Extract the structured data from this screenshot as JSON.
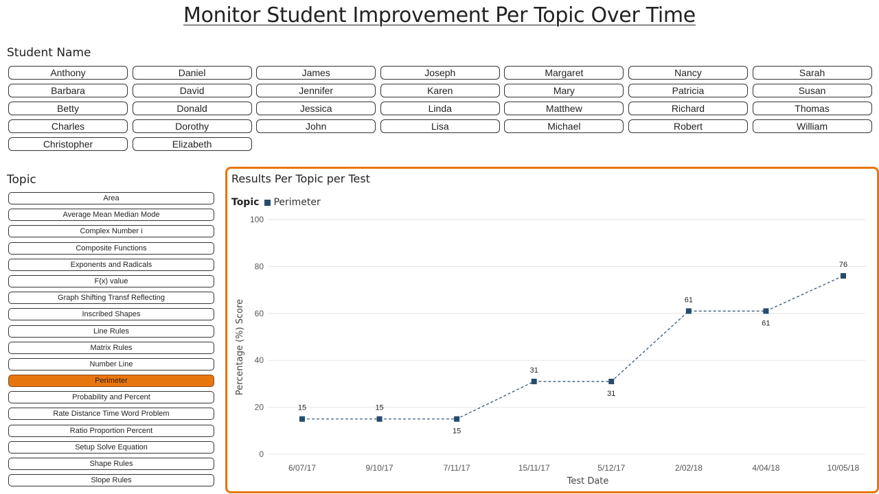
{
  "page": {
    "title": "Monitor Student Improvement Per Topic Over Time"
  },
  "students": {
    "label": "Student Name",
    "names": [
      "Anthony",
      "Daniel",
      "James",
      "Joseph",
      "Margaret",
      "Nancy",
      "Sarah",
      "Barbara",
      "David",
      "Jennifer",
      "Karen",
      "Mary",
      "Patricia",
      "Susan",
      "Betty",
      "Donald",
      "Jessica",
      "Linda",
      "Matthew",
      "Richard",
      "Thomas",
      "Charles",
      "Dorothy",
      "John",
      "Lisa",
      "Michael",
      "Robert",
      "William",
      "Christopher",
      "Elizabeth"
    ]
  },
  "topics": {
    "label": "Topic",
    "selected": "Perimeter",
    "items": [
      "Area",
      "Average Mean Median Mode",
      "Complex Number i",
      "Composite Functions",
      "Exponents and Radicals",
      "F(x) value",
      "Graph Shifting Transf Reflecting",
      "Inscribed Shapes",
      "Line Rules",
      "Matrix Rules",
      "Number Line",
      "Perimeter",
      "Probability and Percent",
      "Rate Distance Time Word Problem",
      "Ratio Proportion Percent",
      "Setup Solve Equation",
      "Shape Rules",
      "Slope Rules"
    ]
  },
  "colors": {
    "accent": "#e8760f",
    "series": "#254b6e",
    "grid": "#e6e6e6"
  },
  "chart_data": {
    "type": "line",
    "title": "Results Per Topic per Test",
    "legend_title": "Topic",
    "legend_position": "top-left",
    "xlabel": "Test Date",
    "ylabel": "Percentage (%) Score",
    "ylim": [
      0,
      100
    ],
    "yticks": [
      0,
      20,
      40,
      60,
      80,
      100
    ],
    "grid": true,
    "categories": [
      "6/07/17",
      "9/10/17",
      "7/11/17",
      "15/11/17",
      "5/12/17",
      "2/02/18",
      "4/04/18",
      "10/05/18"
    ],
    "series": [
      {
        "name": "Perimeter",
        "values": [
          15,
          15,
          15,
          31,
          31,
          61,
          61,
          76
        ],
        "label_positions": [
          "above",
          "above",
          "below",
          "above",
          "below",
          "above",
          "below",
          "above"
        ]
      }
    ]
  }
}
